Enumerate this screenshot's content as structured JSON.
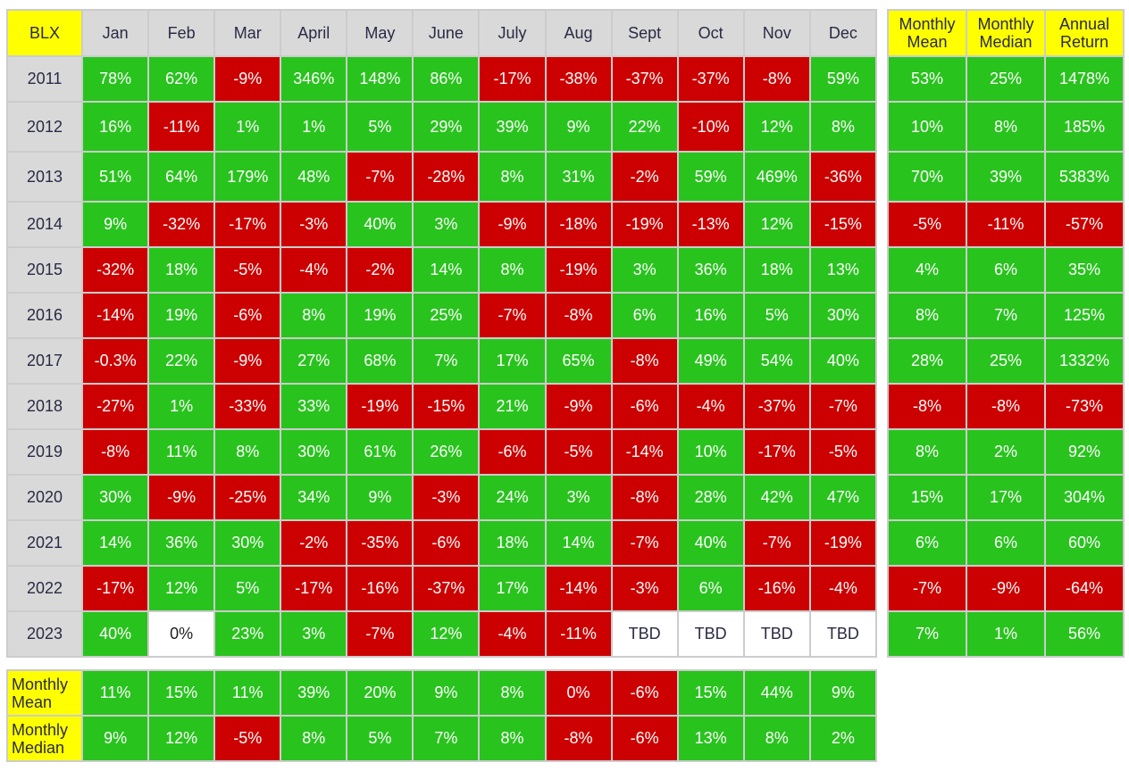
{
  "main_table": {
    "corner_label": "BLX",
    "months": [
      "Jan",
      "Feb",
      "Mar",
      "April",
      "May",
      "June",
      "July",
      "Aug",
      "Sept",
      "Oct",
      "Nov",
      "Dec"
    ],
    "rows": [
      {
        "year": "2011",
        "values": [
          "78%",
          "62%",
          "-9%",
          "346%",
          "148%",
          "86%",
          "-17%",
          "-38%",
          "-37%",
          "-37%",
          "-8%",
          "59%"
        ]
      },
      {
        "year": "2012",
        "values": [
          "16%",
          "-11%",
          "1%",
          "1%",
          "5%",
          "29%",
          "39%",
          "9%",
          "22%",
          "-10%",
          "12%",
          "8%"
        ]
      },
      {
        "year": "2013",
        "values": [
          "51%",
          "64%",
          "179%",
          "48%",
          "-7%",
          "-28%",
          "8%",
          "31%",
          "-2%",
          "59%",
          "469%",
          "-36%"
        ]
      },
      {
        "year": "2014",
        "values": [
          "9%",
          "-32%",
          "-17%",
          "-3%",
          "40%",
          "3%",
          "-9%",
          "-18%",
          "-19%",
          "-13%",
          "12%",
          "-15%"
        ]
      },
      {
        "year": "2015",
        "values": [
          "-32%",
          "18%",
          "-5%",
          "-4%",
          "-2%",
          "14%",
          "8%",
          "-19%",
          "3%",
          "36%",
          "18%",
          "13%"
        ]
      },
      {
        "year": "2016",
        "values": [
          "-14%",
          "19%",
          "-6%",
          "8%",
          "19%",
          "25%",
          "-7%",
          "-8%",
          "6%",
          "16%",
          "5%",
          "30%"
        ]
      },
      {
        "year": "2017",
        "values": [
          "-0.3%",
          "22%",
          "-9%",
          "27%",
          "68%",
          "7%",
          "17%",
          "65%",
          "-8%",
          "49%",
          "54%",
          "40%"
        ]
      },
      {
        "year": "2018",
        "values": [
          "-27%",
          "1%",
          "-33%",
          "33%",
          "-19%",
          "-15%",
          "21%",
          "-9%",
          "-6%",
          "-4%",
          "-37%",
          "-7%"
        ]
      },
      {
        "year": "2019",
        "values": [
          "-8%",
          "11%",
          "8%",
          "30%",
          "61%",
          "26%",
          "-6%",
          "-5%",
          "-14%",
          "10%",
          "-17%",
          "-5%"
        ]
      },
      {
        "year": "2020",
        "values": [
          "30%",
          "-9%",
          "-25%",
          "34%",
          "9%",
          "-3%",
          "24%",
          "3%",
          "-8%",
          "28%",
          "42%",
          "47%"
        ]
      },
      {
        "year": "2021",
        "values": [
          "14%",
          "36%",
          "30%",
          "-2%",
          "-35%",
          "-6%",
          "18%",
          "14%",
          "-7%",
          "40%",
          "-7%",
          "-19%"
        ]
      },
      {
        "year": "2022",
        "values": [
          "-17%",
          "12%",
          "5%",
          "-17%",
          "-16%",
          "-37%",
          "17%",
          "-14%",
          "-3%",
          "6%",
          "-16%",
          "-4%"
        ]
      },
      {
        "year": "2023",
        "values": [
          "40%",
          "0%",
          "23%",
          "3%",
          "-7%",
          "12%",
          "-4%",
          "-11%",
          "TBD",
          "TBD",
          "TBD",
          "TBD"
        ]
      }
    ]
  },
  "summary_table": {
    "headers": [
      {
        "line1": "Monthly",
        "line2": "Mean"
      },
      {
        "line1": "Monthly",
        "line2": "Median"
      },
      {
        "line1": "Annual",
        "line2": "Return"
      }
    ],
    "rows": [
      [
        "53%",
        "25%",
        "1478%"
      ],
      [
        "10%",
        "8%",
        "185%"
      ],
      [
        "70%",
        "39%",
        "5383%"
      ],
      [
        "-5%",
        "-11%",
        "-57%"
      ],
      [
        "4%",
        "6%",
        "35%"
      ],
      [
        "8%",
        "7%",
        "125%"
      ],
      [
        "28%",
        "25%",
        "1332%"
      ],
      [
        "-8%",
        "-8%",
        "-73%"
      ],
      [
        "8%",
        "2%",
        "92%"
      ],
      [
        "15%",
        "17%",
        "304%"
      ],
      [
        "6%",
        "6%",
        "60%"
      ],
      [
        "-7%",
        "-9%",
        "-64%"
      ],
      [
        "7%",
        "1%",
        "56%"
      ]
    ]
  },
  "bottom_table": {
    "rows": [
      {
        "label1": "Monthly",
        "label2": "Mean",
        "values": [
          "11%",
          "15%",
          "11%",
          "39%",
          "20%",
          "9%",
          "8%",
          "0%",
          "-6%",
          "15%",
          "44%",
          "9%"
        ],
        "styles": [
          "pos",
          "pos",
          "pos",
          "pos",
          "pos",
          "pos",
          "pos",
          "neg",
          "neg",
          "pos",
          "pos",
          "pos"
        ]
      },
      {
        "label1": "Monthly",
        "label2": "Median",
        "values": [
          "9%",
          "12%",
          "-5%",
          "8%",
          "5%",
          "7%",
          "8%",
          "-8%",
          "-6%",
          "13%",
          "8%",
          "2%"
        ],
        "styles": [
          "pos",
          "pos",
          "neg",
          "pos",
          "pos",
          "pos",
          "pos",
          "neg",
          "neg",
          "pos",
          "pos",
          "pos"
        ]
      }
    ]
  },
  "colors": {
    "positive": "#29c31e",
    "negative": "#cc0000",
    "header_gray": "#d9d9d9",
    "highlight_yellow": "#ffff00",
    "neutral": "#ffffff",
    "border": "#cccccc"
  }
}
